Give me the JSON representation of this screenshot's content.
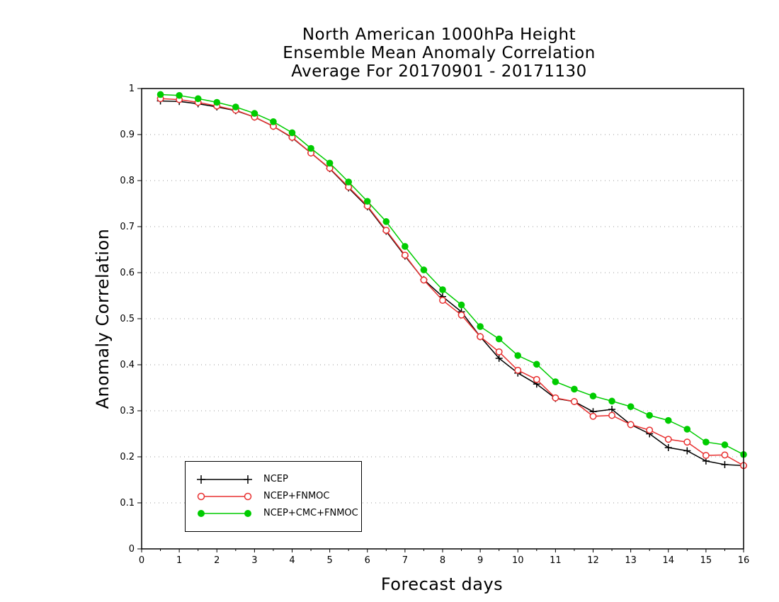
{
  "chart_data": {
    "type": "line",
    "title": [
      "North American 1000hPa Height",
      "Ensemble Mean Anomaly Correlation",
      "Average For 20170901 - 20171130"
    ],
    "xlabel": "Forecast days",
    "ylabel": "Anomaly Correlation",
    "xlim": [
      0,
      16
    ],
    "ylim": [
      0,
      1
    ],
    "xticks": [
      "0",
      "1",
      "2",
      "3",
      "4",
      "5",
      "6",
      "7",
      "8",
      "9",
      "10",
      "11",
      "12",
      "13",
      "14",
      "15",
      "16"
    ],
    "yticks": [
      "0",
      "0.1",
      "0.2",
      "0.3",
      "0.4",
      "0.5",
      "0.6",
      "0.7",
      "0.8",
      "0.9",
      "1"
    ],
    "grid": "horizontal dotted",
    "legend_position": "bottom-left",
    "x": [
      0.5,
      1,
      1.5,
      2,
      2.5,
      3,
      3.5,
      4,
      4.5,
      5,
      5.5,
      6,
      6.5,
      7,
      7.5,
      8,
      8.5,
      9,
      9.5,
      10,
      10.5,
      11,
      11.5,
      12,
      12.5,
      13,
      13.5,
      14,
      14.5,
      15,
      15.5,
      16
    ],
    "series": [
      {
        "name": "NCEP",
        "color": "#000000",
        "marker": "plus",
        "values": [
          0.973,
          0.972,
          0.967,
          0.96,
          0.952,
          0.938,
          0.918,
          0.893,
          0.86,
          0.826,
          0.784,
          0.743,
          0.69,
          0.636,
          0.585,
          0.548,
          0.515,
          0.461,
          0.414,
          0.382,
          0.358,
          0.327,
          0.32,
          0.298,
          0.303,
          0.27,
          0.25,
          0.22,
          0.213,
          0.191,
          0.183,
          0.181
        ]
      },
      {
        "name": "NCEP+FNMOC",
        "color": "#e83030",
        "marker": "open-circle",
        "values": [
          0.978,
          0.976,
          0.97,
          0.962,
          0.953,
          0.938,
          0.918,
          0.894,
          0.86,
          0.827,
          0.786,
          0.745,
          0.692,
          0.638,
          0.584,
          0.54,
          0.508,
          0.461,
          0.428,
          0.388,
          0.368,
          0.328,
          0.32,
          0.288,
          0.29,
          0.27,
          0.258,
          0.238,
          0.232,
          0.203,
          0.204,
          0.181
        ]
      },
      {
        "name": "NCEP+CMC+FNMOC",
        "color": "#00cc00",
        "marker": "filled-circle",
        "values": [
          0.987,
          0.985,
          0.978,
          0.97,
          0.96,
          0.946,
          0.928,
          0.904,
          0.87,
          0.838,
          0.797,
          0.755,
          0.711,
          0.657,
          0.606,
          0.563,
          0.53,
          0.483,
          0.456,
          0.42,
          0.401,
          0.363,
          0.347,
          0.332,
          0.321,
          0.309,
          0.29,
          0.279,
          0.26,
          0.232,
          0.226,
          0.205
        ]
      }
    ]
  }
}
